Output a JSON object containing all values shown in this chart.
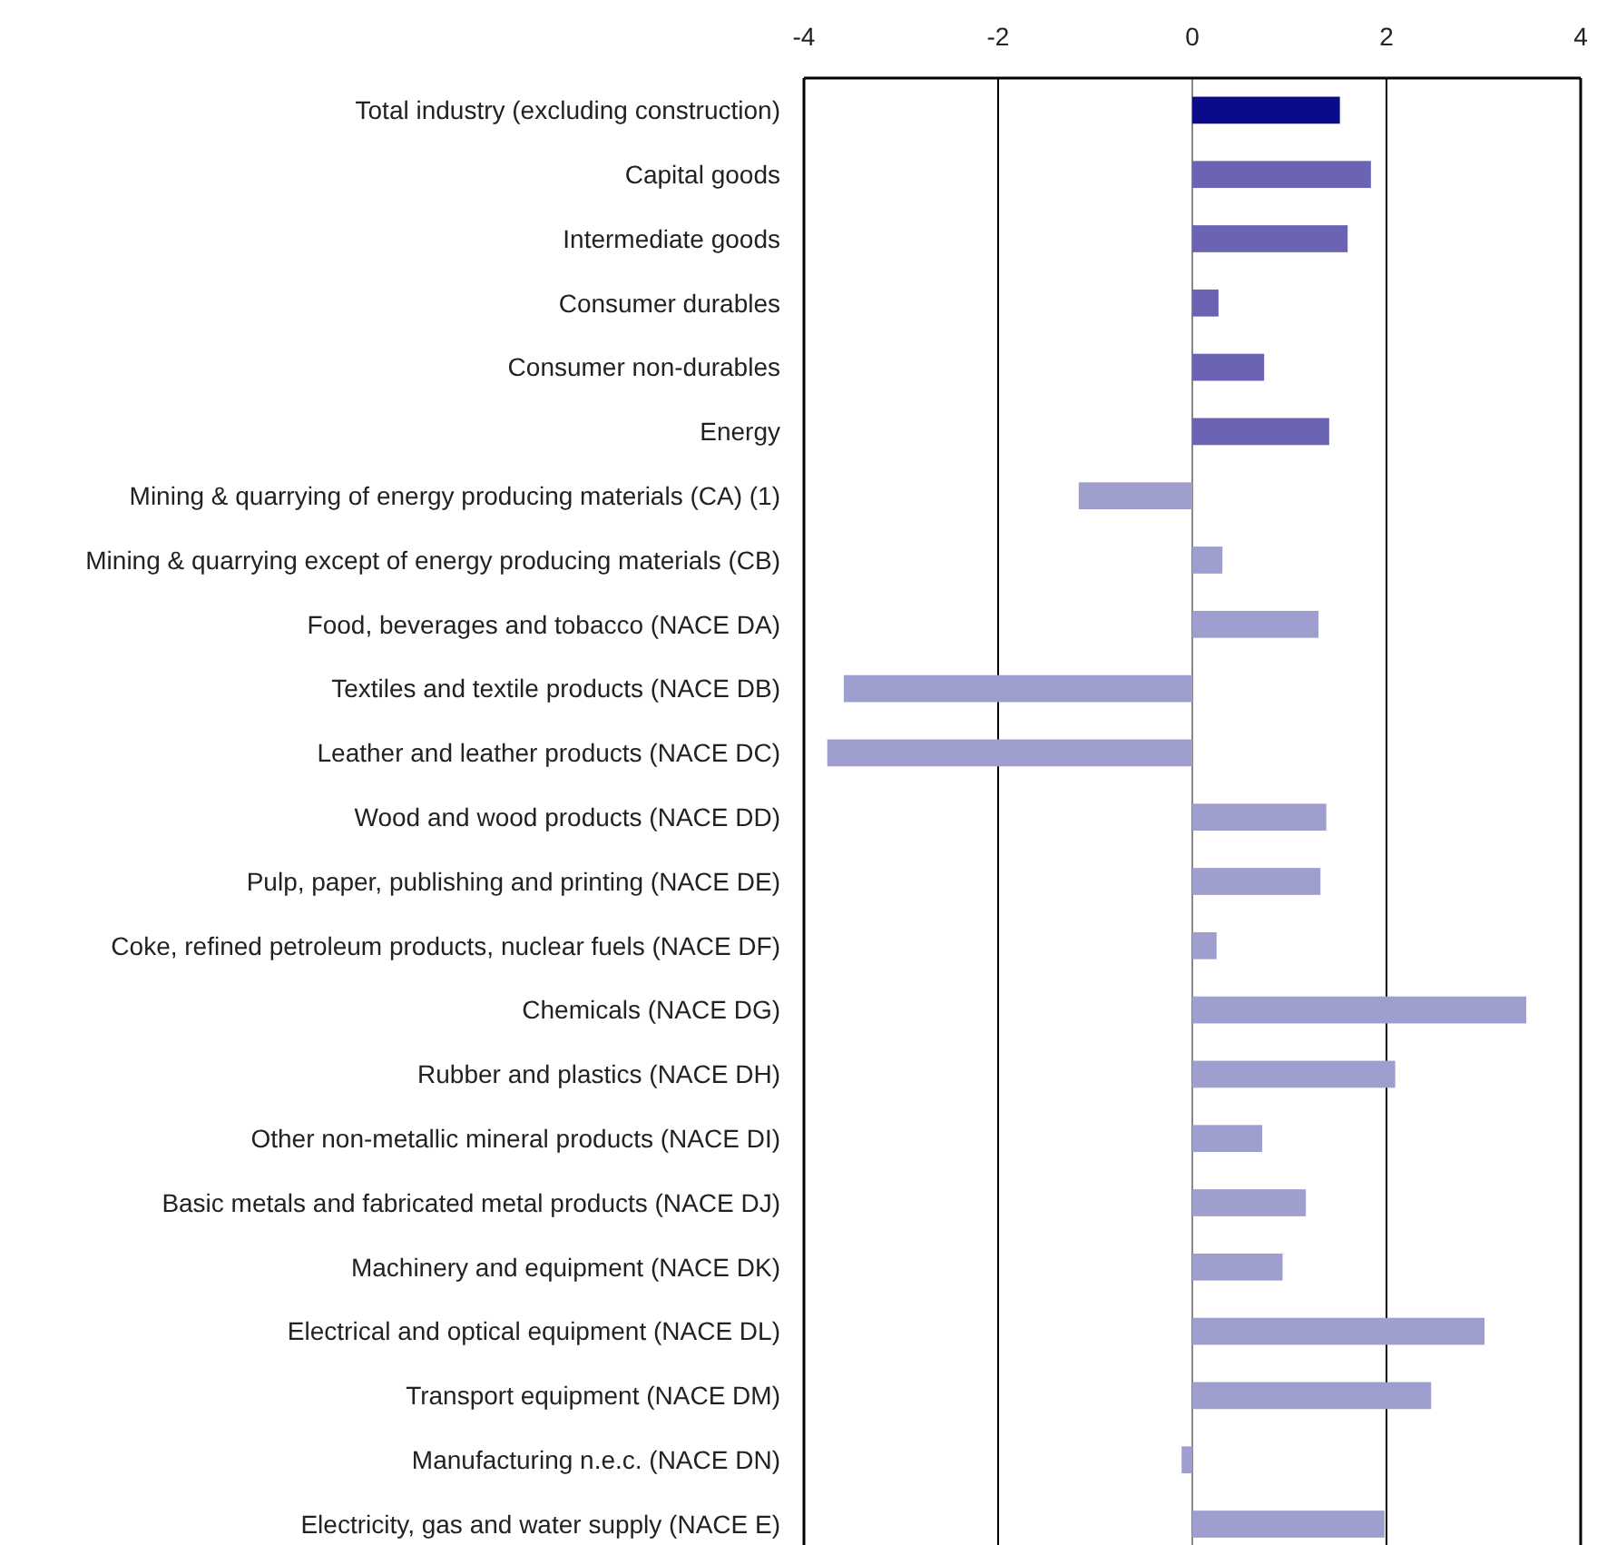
{
  "chart_data": {
    "type": "bar",
    "orientation": "horizontal",
    "categories": [
      "Total industry (excluding construction)",
      "Capital goods",
      "Intermediate goods",
      "Consumer durables",
      "Consumer non-durables",
      "Energy",
      "Mining & quarrying of energy producing materials (CA) (1)",
      "Mining & quarrying except of energy producing materials (CB)",
      "Food, beverages and tobacco (NACE DA)",
      "Textiles and textile products (NACE DB)",
      "Leather and leather products (NACE DC)",
      "Wood and wood products (NACE DD)",
      "Pulp, paper, publishing and printing (NACE DE)",
      "Coke, refined petroleum products, nuclear fuels (NACE DF)",
      "Chemicals (NACE DG)",
      "Rubber and plastics (NACE DH)",
      "Other non-metallic mineral products (NACE DI)",
      "Basic metals and fabricated metal products (NACE DJ)",
      "Machinery and equipment (NACE DK)",
      "Electrical and optical equipment (NACE DL)",
      "Transport equipment (NACE DM)",
      "Manufacturing n.e.c. (NACE DN)",
      "Electricity, gas and water supply (NACE E)"
    ],
    "values": [
      1.52,
      1.84,
      1.6,
      0.27,
      0.74,
      1.41,
      -1.17,
      0.31,
      1.3,
      -3.59,
      -3.76,
      1.38,
      1.32,
      0.25,
      3.44,
      2.09,
      0.72,
      1.17,
      0.93,
      3.01,
      2.46,
      -0.11,
      1.98
    ],
    "colors": [
      "#0a0a8a",
      "#6b64b5",
      "#6b64b5",
      "#6b64b5",
      "#6b64b5",
      "#6b64b5",
      "#9f9fcf",
      "#9f9fcf",
      "#9f9fcf",
      "#9f9fcf",
      "#9f9fcf",
      "#9f9fcf",
      "#9f9fcf",
      "#9f9fcf",
      "#9f9fcf",
      "#9f9fcf",
      "#9f9fcf",
      "#9f9fcf",
      "#9f9fcf",
      "#9f9fcf",
      "#9f9fcf",
      "#9f9fcf",
      "#9f9fcf"
    ],
    "xlim": [
      -4,
      4
    ],
    "xticks": [
      -4,
      -2,
      0,
      2,
      4
    ],
    "grid": "x"
  }
}
